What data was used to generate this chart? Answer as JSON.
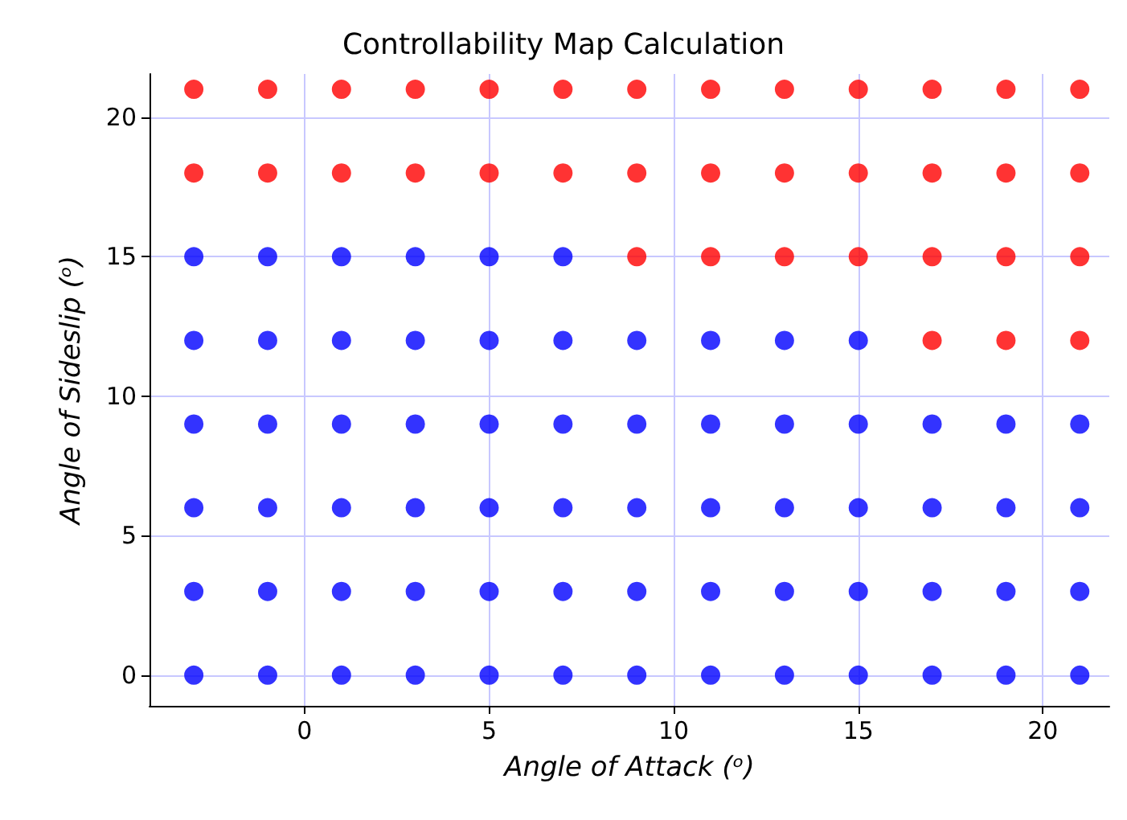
{
  "chart_data": {
    "type": "scatter",
    "title": "Controllability Map Calculation",
    "xlabel": "Angle of Attack (ᵒ)",
    "ylabel": "Angle of Sideslip (ᵒ)",
    "xlim": [
      -4.2,
      21.8
    ],
    "ylim": [
      -1.1,
      21.55
    ],
    "xticks": [
      0,
      5,
      10,
      15,
      20
    ],
    "yticks": [
      0,
      5,
      10,
      15,
      20
    ],
    "grid": true,
    "marker": "circle",
    "series": [
      {
        "color": "#0000ff",
        "x": [
          -3,
          -1,
          1,
          3,
          5,
          7,
          9,
          11,
          13,
          15,
          17,
          19,
          21,
          -3,
          -1,
          1,
          3,
          5,
          7,
          9,
          11,
          13,
          15,
          17,
          19,
          21,
          -3,
          -1,
          1,
          3,
          5,
          7,
          9,
          11,
          13,
          15,
          17,
          19,
          21,
          -3,
          -1,
          1,
          3,
          5,
          7,
          9,
          11,
          13,
          15,
          17,
          19,
          21,
          -3,
          -1,
          1,
          3,
          5,
          7,
          9,
          11,
          13,
          15,
          -3,
          -1,
          1,
          3,
          5,
          7
        ],
        "values": [
          0,
          0,
          0,
          0,
          0,
          0,
          0,
          0,
          0,
          0,
          0,
          0,
          0,
          3,
          3,
          3,
          3,
          3,
          3,
          3,
          3,
          3,
          3,
          3,
          3,
          3,
          6,
          6,
          6,
          6,
          6,
          6,
          6,
          6,
          6,
          6,
          6,
          6,
          6,
          9,
          9,
          9,
          9,
          9,
          9,
          9,
          9,
          9,
          9,
          9,
          9,
          9,
          12,
          12,
          12,
          12,
          12,
          12,
          12,
          12,
          12,
          12,
          15,
          15,
          15,
          15,
          15,
          15
        ]
      },
      {
        "color": "#ff0000",
        "x": [
          17,
          19,
          21,
          9,
          11,
          13,
          15,
          17,
          19,
          21,
          -3,
          -1,
          1,
          3,
          5,
          7,
          9,
          11,
          13,
          15,
          17,
          19,
          21,
          -3,
          -1,
          1,
          3,
          5,
          7,
          9,
          11,
          13,
          15,
          17,
          19,
          21
        ],
        "values": [
          12,
          12,
          12,
          15,
          15,
          15,
          15,
          15,
          15,
          15,
          18,
          18,
          18,
          18,
          18,
          18,
          18,
          18,
          18,
          18,
          18,
          18,
          18,
          21,
          21,
          21,
          21,
          21,
          21,
          21,
          21,
          21,
          21,
          21,
          21,
          21
        ]
      }
    ]
  }
}
